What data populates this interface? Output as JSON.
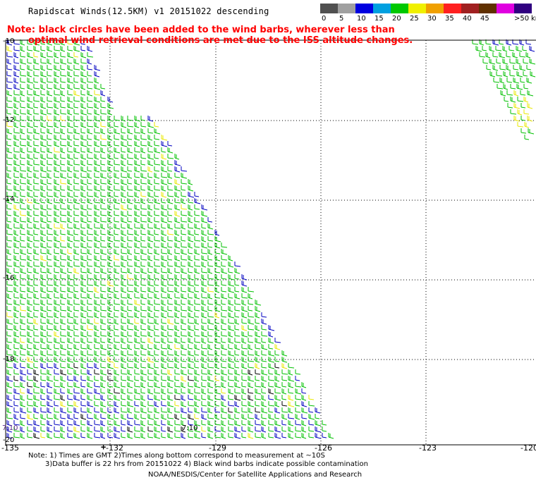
{
  "title": "Rapidscat Winds(12.5KM) v1 20151022 descending",
  "note": {
    "line1": "Note: black circles have been added to the wind barbs, wherever less than",
    "line2": "optimal wind retrieval conditions are met due to the ISS altitude changes."
  },
  "legend": {
    "unit": "knots",
    "bins": [
      {
        "label": "0",
        "color": "#505050"
      },
      {
        "label": "5",
        "color": "#a0a0a0"
      },
      {
        "label": "10",
        "color": "#0000e0"
      },
      {
        "label": "15",
        "color": "#00a0e0"
      },
      {
        "label": "20",
        "color": "#00c800"
      },
      {
        "label": "25",
        "color": "#f0f000"
      },
      {
        "label": "30",
        "color": "#f0a000"
      },
      {
        "label": "35",
        "color": "#ff2020"
      },
      {
        "label": "40",
        "color": "#a02020"
      },
      {
        "label": "45",
        "color": "#603000"
      },
      {
        "label": "",
        "color": "#e000e0"
      },
      {
        "label": ">50",
        "color": "#300080"
      }
    ]
  },
  "map": {
    "lon_labels": [
      "-135",
      "-132",
      "-129",
      "-126",
      "-123",
      "-120"
    ],
    "lat_labels": [
      "-10",
      "-12",
      "-14",
      "-16",
      "-18",
      "-20"
    ],
    "time_labels": [
      "7:10",
      "7:10"
    ],
    "barb_colors": {
      "dark_blue": "#0000c0",
      "green": "#00c000",
      "yellow": "#e8e800",
      "black": "#000000"
    }
  },
  "footer": {
    "line1": "Note: 1) Times are GMT 2)Times along bottom correspond to measurement at ~10S",
    "line2": "3)Data buffer is 22 hrs from 20151022 4) Black wind barbs indicate possible contamination",
    "line3": "NOAA/NESDIS/Center for Satellite Applications and Research"
  }
}
